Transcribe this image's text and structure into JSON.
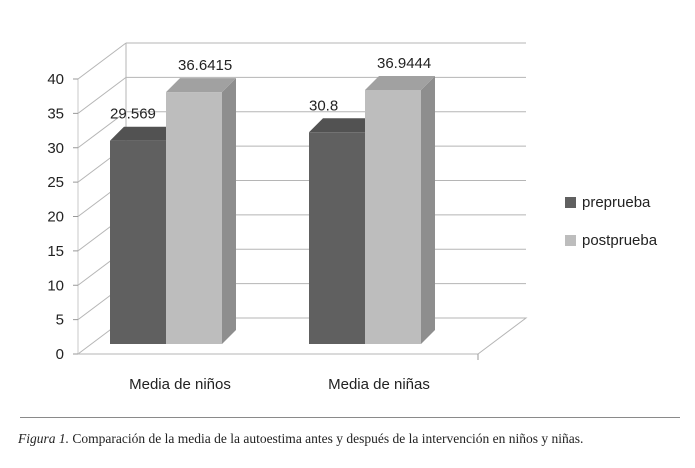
{
  "chart_data": {
    "type": "bar",
    "categories": [
      "Media de niños",
      "Media de niñas"
    ],
    "series": [
      {
        "name": "preprueba",
        "values": [
          29.569,
          30.8
        ],
        "labels": [
          "29.569",
          "30.8"
        ],
        "color": "#606060"
      },
      {
        "name": "postprueba",
        "values": [
          36.6415,
          36.9444
        ],
        "labels": [
          "36.6415",
          "36.9444"
        ],
        "color": "#bdbdbd"
      }
    ],
    "yticks": [
      "0",
      "5",
      "10",
      "15",
      "20",
      "25",
      "30",
      "35",
      "40"
    ],
    "ylim": [
      0,
      40
    ],
    "grid": true,
    "legend_position": "right",
    "style": "3d-column"
  },
  "caption": {
    "label": "Figura 1.",
    "text": " Comparación de la media de la autoestima antes y después de la intervención en niños y niñas."
  }
}
